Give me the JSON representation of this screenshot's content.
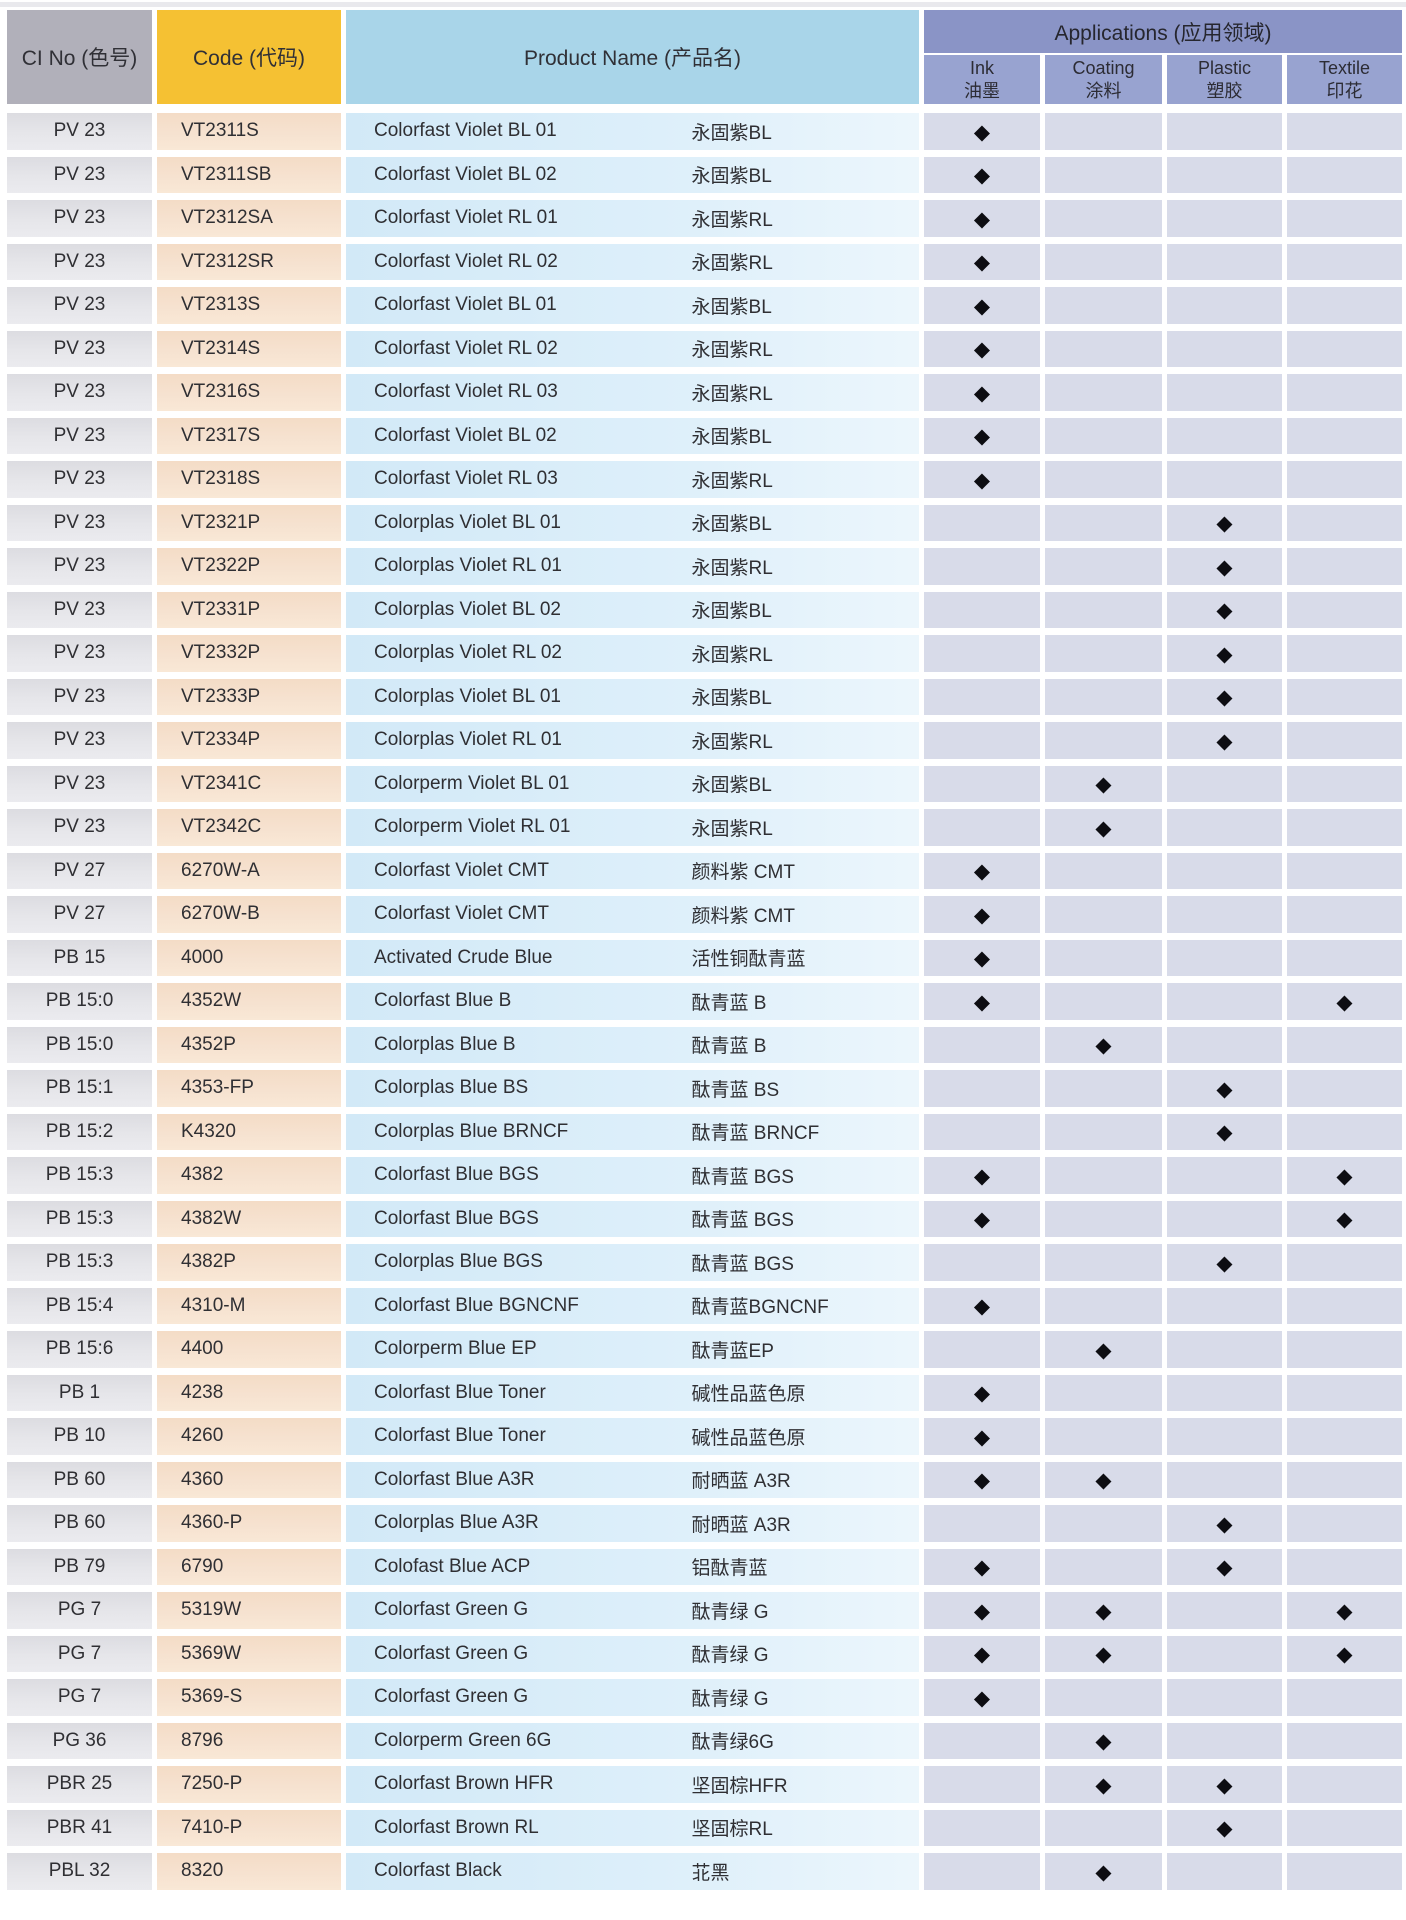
{
  "document_title": "Pigment product application table",
  "colors": {
    "headerGray": "#b1b0ba",
    "headerYellow": "#f5c133",
    "headerBlue": "#a9d5e9",
    "appsDark": "#8a94c6",
    "appsMid": "#98a3d0",
    "cellLavender": "#d8dbe9",
    "stripGray": "#e9e9ed",
    "rowBlue": "#d9edf9",
    "rowPeach": "#f5dfcb",
    "rowGray": "#e2e2e7"
  },
  "marker": "◆",
  "header": {
    "ci_no": "CI No (色号)",
    "code": "Code (代码)",
    "product_name": "Product Name (产品名)",
    "applications": "Applications (应用领域)",
    "app_columns": [
      {
        "en": "Ink",
        "zh": "油墨"
      },
      {
        "en": "Coating",
        "zh": "涂料"
      },
      {
        "en": "Plastic",
        "zh": "塑胶"
      },
      {
        "en": "Textile",
        "zh": "印花"
      }
    ]
  },
  "rows": [
    {
      "ci": "PV 23",
      "code": "VT2311S",
      "name_en": "Colorfast Violet BL 01",
      "name_zh": "永固紫BL",
      "apps": [
        1,
        0,
        0,
        0
      ]
    },
    {
      "ci": "PV 23",
      "code": "VT2311SB",
      "name_en": "Colorfast Violet BL 02",
      "name_zh": "永固紫BL",
      "apps": [
        1,
        0,
        0,
        0
      ]
    },
    {
      "ci": "PV 23",
      "code": "VT2312SA",
      "name_en": "Colorfast Violet RL 01",
      "name_zh": "永固紫RL",
      "apps": [
        1,
        0,
        0,
        0
      ]
    },
    {
      "ci": "PV 23",
      "code": "VT2312SR",
      "name_en": "Colorfast Violet RL 02",
      "name_zh": "永固紫RL",
      "apps": [
        1,
        0,
        0,
        0
      ]
    },
    {
      "ci": "PV 23",
      "code": "VT2313S",
      "name_en": "Colorfast Violet BL 01",
      "name_zh": "永固紫BL",
      "apps": [
        1,
        0,
        0,
        0
      ]
    },
    {
      "ci": "PV 23",
      "code": "VT2314S",
      "name_en": "Colorfast Violet RL 02",
      "name_zh": "永固紫RL",
      "apps": [
        1,
        0,
        0,
        0
      ]
    },
    {
      "ci": "PV 23",
      "code": "VT2316S",
      "name_en": "Colorfast Violet RL 03",
      "name_zh": "永固紫RL",
      "apps": [
        1,
        0,
        0,
        0
      ]
    },
    {
      "ci": "PV 23",
      "code": "VT2317S",
      "name_en": "Colorfast Violet BL 02",
      "name_zh": "永固紫BL",
      "apps": [
        1,
        0,
        0,
        0
      ]
    },
    {
      "ci": "PV 23",
      "code": "VT2318S",
      "name_en": "Colorfast Violet RL 03",
      "name_zh": "永固紫RL",
      "apps": [
        1,
        0,
        0,
        0
      ]
    },
    {
      "ci": "PV 23",
      "code": "VT2321P",
      "name_en": "Colorplas Violet BL 01",
      "name_zh": "永固紫BL",
      "apps": [
        0,
        0,
        1,
        0
      ]
    },
    {
      "ci": "PV 23",
      "code": "VT2322P",
      "name_en": "Colorplas Violet RL 01",
      "name_zh": "永固紫RL",
      "apps": [
        0,
        0,
        1,
        0
      ]
    },
    {
      "ci": "PV 23",
      "code": "VT2331P",
      "name_en": "Colorplas Violet BL 02",
      "name_zh": "永固紫BL",
      "apps": [
        0,
        0,
        1,
        0
      ]
    },
    {
      "ci": "PV 23",
      "code": "VT2332P",
      "name_en": "Colorplas Violet RL 02",
      "name_zh": "永固紫RL",
      "apps": [
        0,
        0,
        1,
        0
      ]
    },
    {
      "ci": "PV 23",
      "code": "VT2333P",
      "name_en": "Colorplas Violet BL 01",
      "name_zh": "永固紫BL",
      "apps": [
        0,
        0,
        1,
        0
      ]
    },
    {
      "ci": "PV 23",
      "code": "VT2334P",
      "name_en": "Colorplas Violet RL 01",
      "name_zh": "永固紫RL",
      "apps": [
        0,
        0,
        1,
        0
      ]
    },
    {
      "ci": "PV 23",
      "code": "VT2341C",
      "name_en": "Colorperm Violet BL 01",
      "name_zh": "永固紫BL",
      "apps": [
        0,
        1,
        0,
        0
      ]
    },
    {
      "ci": "PV 23",
      "code": "VT2342C",
      "name_en": "Colorperm Violet RL 01",
      "name_zh": "永固紫RL",
      "apps": [
        0,
        1,
        0,
        0
      ]
    },
    {
      "ci": "PV 27",
      "code": "6270W-A",
      "name_en": "Colorfast Violet CMT",
      "name_zh": "颜料紫 CMT",
      "apps": [
        1,
        0,
        0,
        0
      ]
    },
    {
      "ci": "PV 27",
      "code": "6270W-B",
      "name_en": "Colorfast Violet CMT",
      "name_zh": "颜料紫 CMT",
      "apps": [
        1,
        0,
        0,
        0
      ]
    },
    {
      "ci": "PB 15",
      "code": "4000",
      "name_en": "Activated Crude Blue",
      "name_zh": "活性铜酞青蓝",
      "apps": [
        1,
        0,
        0,
        0
      ]
    },
    {
      "ci": "PB 15:0",
      "code": "4352W",
      "name_en": "Colorfast Blue B",
      "name_zh": "酞青蓝 B",
      "apps": [
        1,
        0,
        0,
        1
      ]
    },
    {
      "ci": "PB 15:0",
      "code": "4352P",
      "name_en": "Colorplas Blue B",
      "name_zh": "酞青蓝 B",
      "apps": [
        0,
        1,
        0,
        0
      ]
    },
    {
      "ci": "PB 15:1",
      "code": "4353-FP",
      "name_en": "Colorplas Blue BS",
      "name_zh": "酞青蓝 BS",
      "apps": [
        0,
        0,
        1,
        0
      ]
    },
    {
      "ci": "PB 15:2",
      "code": "K4320",
      "name_en": "Colorplas Blue BRNCF",
      "name_zh": "酞青蓝 BRNCF",
      "apps": [
        0,
        0,
        1,
        0
      ]
    },
    {
      "ci": "PB 15:3",
      "code": "4382",
      "name_en": "Colorfast Blue BGS",
      "name_zh": "酞青蓝 BGS",
      "apps": [
        1,
        0,
        0,
        1
      ]
    },
    {
      "ci": "PB 15:3",
      "code": "4382W",
      "name_en": "Colorfast Blue BGS",
      "name_zh": "酞青蓝 BGS",
      "apps": [
        1,
        0,
        0,
        1
      ]
    },
    {
      "ci": "PB 15:3",
      "code": "4382P",
      "name_en": "Colorplas Blue BGS",
      "name_zh": "酞青蓝 BGS",
      "apps": [
        0,
        0,
        1,
        0
      ]
    },
    {
      "ci": "PB 15:4",
      "code": "4310-M",
      "name_en": "Colorfast Blue BGNCNF",
      "name_zh": "酞青蓝BGNCNF",
      "apps": [
        1,
        0,
        0,
        0
      ]
    },
    {
      "ci": "PB 15:6",
      "code": "4400",
      "name_en": "Colorperm Blue EP",
      "name_zh": "酞青蓝EP",
      "apps": [
        0,
        1,
        0,
        0
      ]
    },
    {
      "ci": "PB 1",
      "code": "4238",
      "name_en": "Colorfast Blue Toner",
      "name_zh": "碱性品蓝色原",
      "apps": [
        1,
        0,
        0,
        0
      ]
    },
    {
      "ci": "PB 10",
      "code": "4260",
      "name_en": "Colorfast Blue Toner",
      "name_zh": "碱性品蓝色原",
      "apps": [
        1,
        0,
        0,
        0
      ]
    },
    {
      "ci": "PB 60",
      "code": "4360",
      "name_en": "Colorfast Blue A3R",
      "name_zh": "耐晒蓝 A3R",
      "apps": [
        1,
        1,
        0,
        0
      ]
    },
    {
      "ci": "PB 60",
      "code": "4360-P",
      "name_en": "Colorplas Blue A3R",
      "name_zh": "耐晒蓝 A3R",
      "apps": [
        0,
        0,
        1,
        0
      ]
    },
    {
      "ci": "PB 79",
      "code": "6790",
      "name_en": "Colofast Blue ACP",
      "name_zh": "铝酞青蓝",
      "apps": [
        1,
        0,
        1,
        0
      ]
    },
    {
      "ci": "PG 7",
      "code": "5319W",
      "name_en": "Colorfast Green G",
      "name_zh": "酞青绿 G",
      "apps": [
        1,
        1,
        0,
        1
      ]
    },
    {
      "ci": "PG 7",
      "code": "5369W",
      "name_en": "Colorfast Green G",
      "name_zh": "酞青绿 G",
      "apps": [
        1,
        1,
        0,
        1
      ]
    },
    {
      "ci": "PG 7",
      "code": "5369-S",
      "name_en": "Colorfast Green G",
      "name_zh": "酞青绿 G",
      "apps": [
        1,
        0,
        0,
        0
      ]
    },
    {
      "ci": "PG 36",
      "code": "8796",
      "name_en": "Colorperm Green 6G",
      "name_zh": "酞青绿6G",
      "apps": [
        0,
        1,
        0,
        0
      ]
    },
    {
      "ci": "PBR 25",
      "code": "7250-P",
      "name_en": "Colorfast Brown HFR",
      "name_zh": "坚固棕HFR",
      "apps": [
        0,
        1,
        1,
        0
      ]
    },
    {
      "ci": "PBR 41",
      "code": "7410-P",
      "name_en": "Colorfast Brown RL",
      "name_zh": "坚固棕RL",
      "apps": [
        0,
        0,
        1,
        0
      ]
    },
    {
      "ci": "PBL 32",
      "code": "8320",
      "name_en": "Colorfast Black",
      "name_zh": "苝黑",
      "apps": [
        0,
        1,
        0,
        0
      ]
    }
  ]
}
